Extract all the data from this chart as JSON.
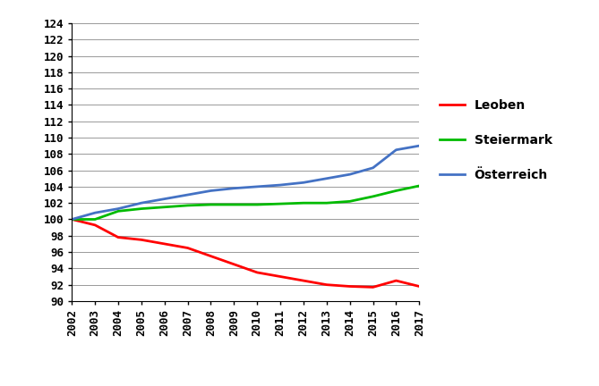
{
  "years": [
    2002,
    2003,
    2004,
    2005,
    2006,
    2007,
    2008,
    2009,
    2010,
    2011,
    2012,
    2013,
    2014,
    2015,
    2016,
    2017
  ],
  "leoben": [
    100.0,
    99.3,
    97.8,
    97.5,
    97.0,
    96.5,
    95.5,
    94.5,
    93.5,
    93.0,
    92.5,
    92.0,
    91.8,
    91.7,
    92.5,
    91.8
  ],
  "steiermark": [
    100.0,
    100.0,
    101.0,
    101.3,
    101.5,
    101.7,
    101.8,
    101.8,
    101.8,
    101.9,
    102.0,
    102.0,
    102.2,
    102.8,
    103.5,
    104.1
  ],
  "oesterreich": [
    100.0,
    100.8,
    101.3,
    102.0,
    102.5,
    103.0,
    103.5,
    103.8,
    104.0,
    104.2,
    104.5,
    105.0,
    105.5,
    106.3,
    108.5,
    109.0
  ],
  "leoben_color": "#FF0000",
  "steiermark_color": "#00BB00",
  "oesterreich_color": "#4472C4",
  "line_width": 2.0,
  "ylim": [
    90,
    124
  ],
  "yticks": [
    90,
    92,
    94,
    96,
    98,
    100,
    102,
    104,
    106,
    108,
    110,
    112,
    114,
    116,
    118,
    120,
    122,
    124
  ],
  "legend_leoben": "Leoben",
  "legend_steiermark": "Steiermark",
  "legend_oesterreich": "Österreich",
  "background_color": "#FFFFFF",
  "grid_color": "#999999",
  "tick_fontsize": 9,
  "legend_fontsize": 10
}
